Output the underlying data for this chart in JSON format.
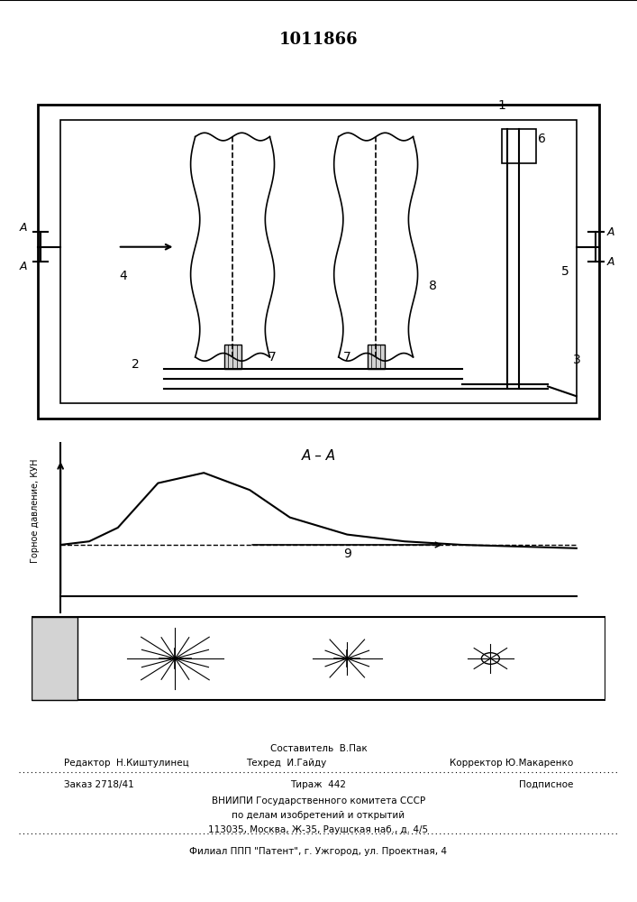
{
  "title": "1011866",
  "bg_color": "#ffffff",
  "line_color": "#000000",
  "fig_width": 7.07,
  "fig_height": 10.0,
  "footer_lines": [
    [
      "",
      "Составитель  В.Пак",
      ""
    ],
    [
      "Редактор  Н.Киштулинец",
      "Техред  И.Гайду",
      "Корректор Ю.Макаренко"
    ],
    [
      "Заказ 2718/41",
      "Тираж  442",
      "Подписное"
    ],
    [
      "",
      "ВНИИПИ Государственного комитета СССР",
      ""
    ],
    [
      "",
      "по делам изобретений и открытий",
      ""
    ],
    [
      "",
      "113035, Москва, Ж-35, Раушская наб., д. 4/5",
      ""
    ],
    [
      "",
      "Филиал ППП \"Патент\", г. Ужгород, ул. Проектная, 4",
      ""
    ]
  ]
}
